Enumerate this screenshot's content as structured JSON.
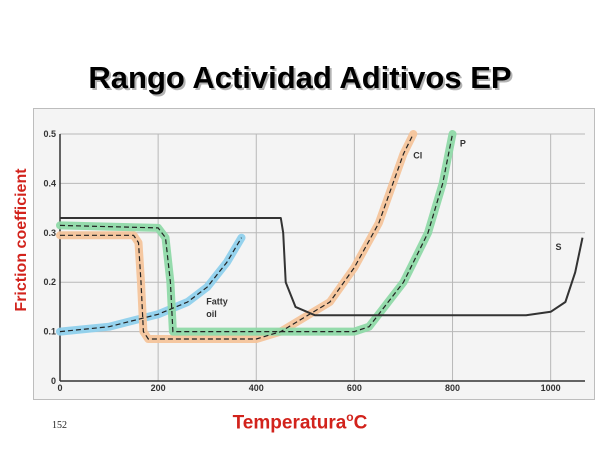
{
  "slide": {
    "title": "Rango Actividad Aditivos EP",
    "ylabel": "Friction coefficient",
    "xlabel_main": "Temperatura",
    "xlabel_sup": "o",
    "xlabel_unit": "C",
    "slide_number": "152"
  },
  "colors": {
    "label_red": "#d2231c",
    "fatty_oil": "#8fd0ec",
    "cl": "#f4c49b",
    "p": "#8fd9a8",
    "s": "#333333"
  },
  "chart_data": {
    "type": "line",
    "xlabel": "Temperatura°C",
    "ylabel": "Friction coefficient",
    "xlim": [
      0,
      1070
    ],
    "ylim": [
      0,
      0.5
    ],
    "x_ticks": [
      0,
      200,
      400,
      600,
      800,
      1000
    ],
    "x_tick_labels": [
      "0",
      "200",
      "400",
      "600",
      "800",
      "1000"
    ],
    "y_ticks": [
      0,
      0.1,
      0.2,
      0.3,
      0.4,
      0.5
    ],
    "y_tick_labels": [
      "0",
      "0.1",
      "0.2",
      "0.3",
      "0.4",
      "0.5"
    ],
    "grid": true,
    "series": [
      {
        "name": "Fatty oil",
        "label_line1": "Fatty",
        "label_line2": "oil",
        "color": "#8fd0ec",
        "style": "band",
        "x": [
          0,
          100,
          200,
          260,
          300,
          340,
          370
        ],
        "y": [
          0.1,
          0.11,
          0.135,
          0.16,
          0.19,
          0.24,
          0.29
        ]
      },
      {
        "name": "Cl",
        "label": "Cl",
        "color": "#f4c49b",
        "style": "band",
        "x": [
          0,
          150,
          160,
          165,
          170,
          180,
          200,
          300,
          400,
          450,
          500,
          550,
          600,
          650,
          700,
          720
        ],
        "y": [
          0.295,
          0.295,
          0.28,
          0.2,
          0.1,
          0.085,
          0.085,
          0.085,
          0.085,
          0.1,
          0.13,
          0.16,
          0.23,
          0.32,
          0.46,
          0.5
        ]
      },
      {
        "name": "P",
        "label": "P",
        "color": "#8fd9a8",
        "style": "band",
        "x": [
          0,
          200,
          215,
          225,
          230,
          300,
          400,
          500,
          600,
          630,
          700,
          750,
          780,
          800
        ],
        "y": [
          0.315,
          0.31,
          0.29,
          0.2,
          0.1,
          0.1,
          0.1,
          0.1,
          0.1,
          0.11,
          0.2,
          0.3,
          0.4,
          0.5
        ]
      },
      {
        "name": "S",
        "label": "S",
        "color": "#333333",
        "style": "line",
        "x": [
          0,
          200,
          450,
          455,
          460,
          480,
          520,
          600,
          800,
          950,
          1000,
          1030,
          1050,
          1065
        ],
        "y": [
          0.33,
          0.33,
          0.33,
          0.3,
          0.2,
          0.15,
          0.133,
          0.133,
          0.133,
          0.133,
          0.14,
          0.16,
          0.22,
          0.29
        ]
      }
    ]
  }
}
